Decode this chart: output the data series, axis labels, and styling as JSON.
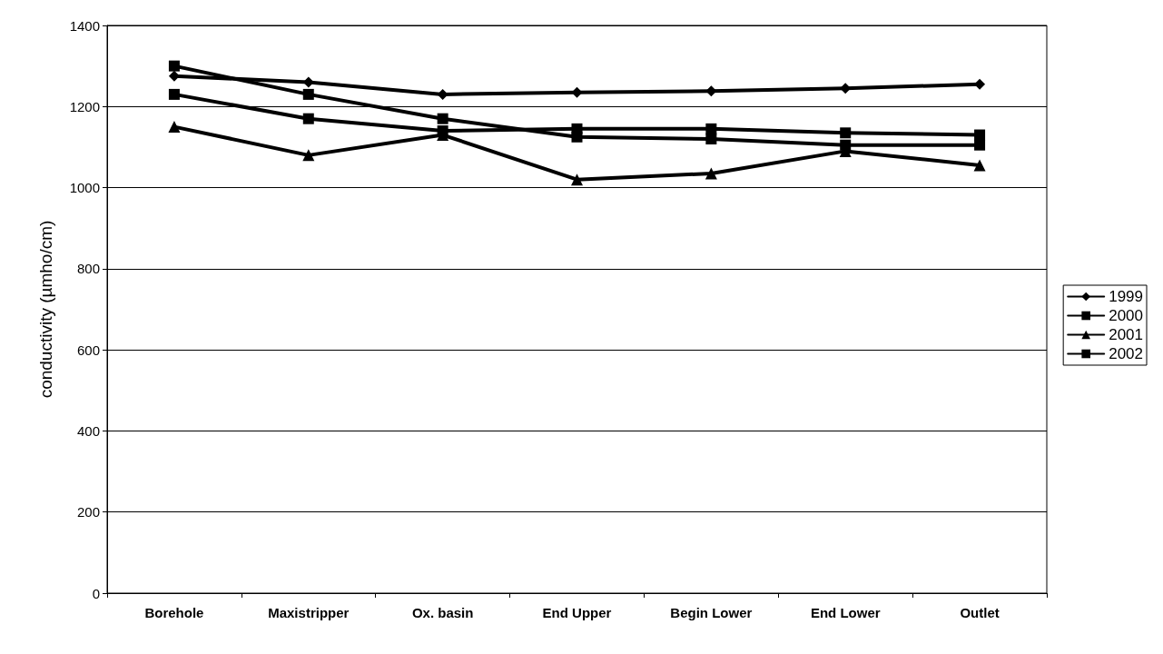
{
  "chart_data": {
    "type": "line",
    "ylabel": "conductivity (µmho/cm)",
    "categories": [
      "Borehole",
      "Maxistripper",
      "Ox. basin",
      "End Upper",
      "Begin Lower",
      "End Lower",
      "Outlet"
    ],
    "series": [
      {
        "name": "1999",
        "color": "#000000",
        "marker": "diamond",
        "values": [
          1275,
          1260,
          1230,
          1235,
          1238,
          1245,
          1255
        ]
      },
      {
        "name": "2000",
        "color": "#000000",
        "marker": "square",
        "values": [
          1230,
          1170,
          1140,
          1145,
          1145,
          1135,
          1130
        ]
      },
      {
        "name": "2001",
        "color": "#000000",
        "marker": "triangle",
        "values": [
          1150,
          1080,
          1130,
          1020,
          1035,
          1090,
          1055
        ]
      },
      {
        "name": "2002",
        "color": "#000000",
        "marker": "square",
        "values": [
          1300,
          1230,
          1170,
          1125,
          1120,
          1105,
          1105
        ]
      }
    ],
    "ylim": [
      0,
      1400
    ],
    "yticks": [
      0,
      200,
      400,
      600,
      800,
      1000,
      1200,
      1400
    ],
    "grid": "y",
    "legend": "right",
    "line_style": "solid"
  }
}
